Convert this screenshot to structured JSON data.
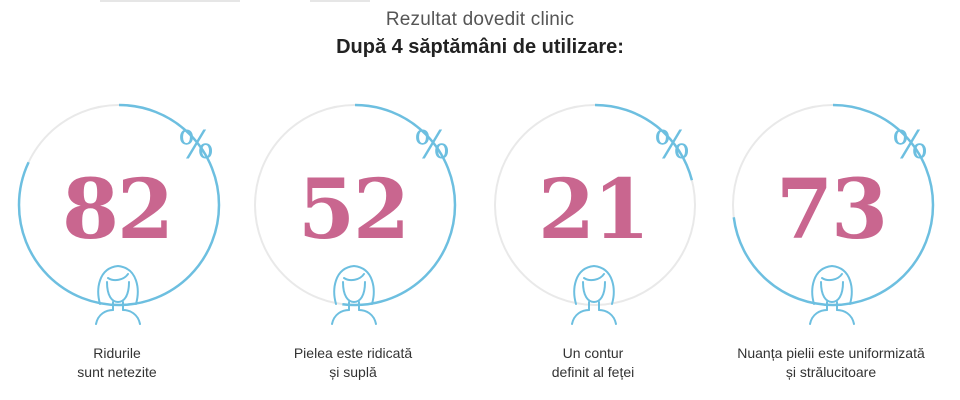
{
  "header": {
    "subtitle": "Rezultat dovedit clinic",
    "title": "După 4 săptămâni de utilizare:"
  },
  "colors": {
    "accent_blue": "#6dbfe0",
    "number_pink": "#c9668f",
    "track_gray": "#e9e9e9"
  },
  "stats": [
    {
      "value": "82",
      "percent": 82,
      "unit": "%",
      "line1": "Ridurile",
      "line2": "sunt netezite",
      "icon": "woman-face-icon"
    },
    {
      "value": "52",
      "percent": 52,
      "unit": "%",
      "line1": "Pielea este ridicată",
      "line2": "și suplă",
      "icon": "woman-face-icon"
    },
    {
      "value": "21",
      "percent": 21,
      "unit": "%",
      "line1": "Un contur",
      "line2": "definit al feței",
      "icon": "woman-face-icon"
    },
    {
      "value": "73",
      "percent": 73,
      "unit": "%",
      "line1": "Nuanța pielii este uniformizată",
      "line2": "și strălucitoare",
      "icon": "woman-face-icon"
    }
  ]
}
